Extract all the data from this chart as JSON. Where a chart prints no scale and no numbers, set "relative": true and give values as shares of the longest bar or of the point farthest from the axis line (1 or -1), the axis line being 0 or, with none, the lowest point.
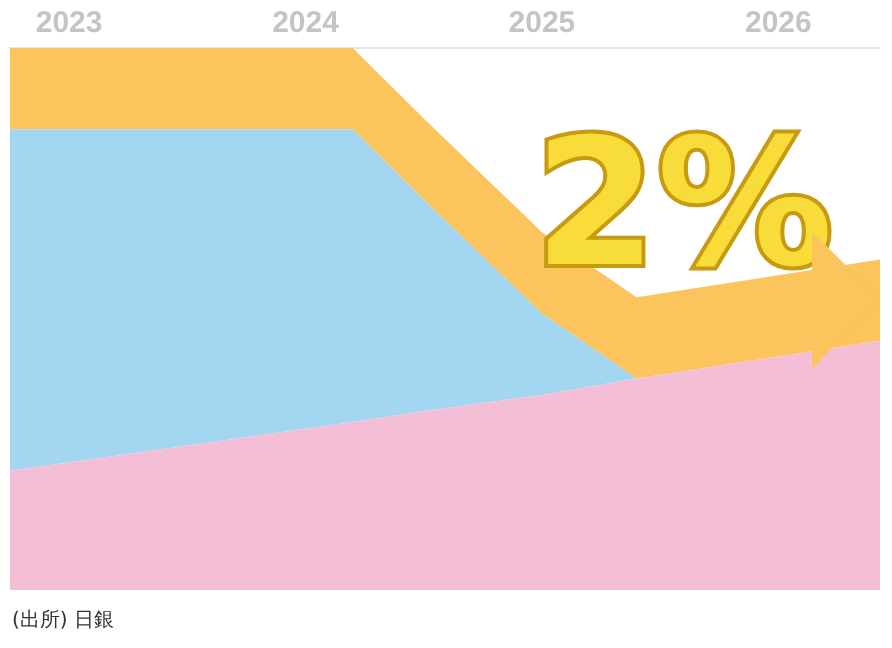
{
  "chart_data": {
    "type": "area",
    "relative": true,
    "stacked": true,
    "legend": false,
    "grid": false,
    "x": [
      2022.75,
      2024.2,
      2024.5,
      2025,
      2025.4,
      2026.43
    ],
    "xlim": [
      2022.75,
      2026.43
    ],
    "xticks": [
      2023,
      2024,
      2025,
      2026
    ],
    "series": [
      {
        "color": "#f4bfd6",
        "values": [
          0.22,
          0.31,
          0.33,
          0.36,
          0.39,
          0.46
        ]
      },
      {
        "color": "#a3d6f0",
        "values": [
          0.63,
          0.54,
          0.39,
          0.15,
          0,
          0
        ]
      },
      {
        "color": "#fbc45c",
        "values": [
          0.15,
          0.15,
          0.15,
          0.15,
          0.15,
          0.15
        ]
      }
    ],
    "annotations": [
      "2%",
      "(出所) 日銀"
    ]
  }
}
